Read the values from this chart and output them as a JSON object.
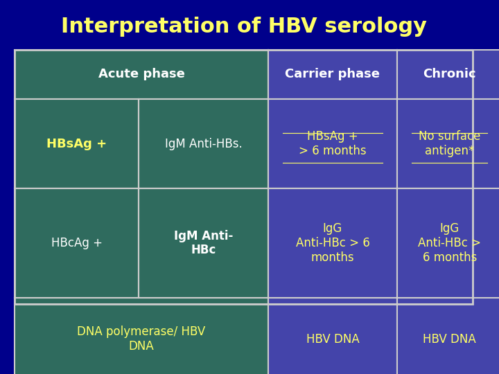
{
  "title": "Interpretation of HBV serology",
  "title_color": "#FFFF66",
  "title_fontsize": 22,
  "bg_color": "#00008B",
  "header_bg_acute": "#2F6B5E",
  "header_bg_carrier": "#4444AA",
  "header_bg_chronic": "#4444AA",
  "cell_bg_acute": "#2F6B5E",
  "cell_bg_carrier": "#4444AA",
  "cell_bg_chronic": "#4444AA",
  "header_text_color": "#FFFFFF",
  "cell_text_color_acute": "#FFFF66",
  "cell_text_color_white": "#FFFFFF",
  "cell_text_color_carrier": "#FFFF66",
  "cell_text_color_chronic": "#FFFF66",
  "border_color": "#CCCCCC",
  "headers": [
    "Acute phase",
    "Carrier phase",
    "Chronic"
  ],
  "row1_col1a": "HBsAg +",
  "row1_col1b": "IgM Anti-HBs.",
  "row1_col2": "HBsAg +\n> 6 months",
  "row1_col3": "No surface\nantigen*",
  "row2_col1a": "HBcAg +",
  "row2_col1b": "IgM Anti-\nHBc",
  "row2_col2": "IgG\nAnti-HBc > 6\nmonths",
  "row2_col3": "IgG\nAnti-HBc >\n6 months",
  "row3_col1": "DNA polymerase/ HBV\nDNA",
  "row3_col2": "HBV DNA",
  "row3_col3": "HBV DNA"
}
